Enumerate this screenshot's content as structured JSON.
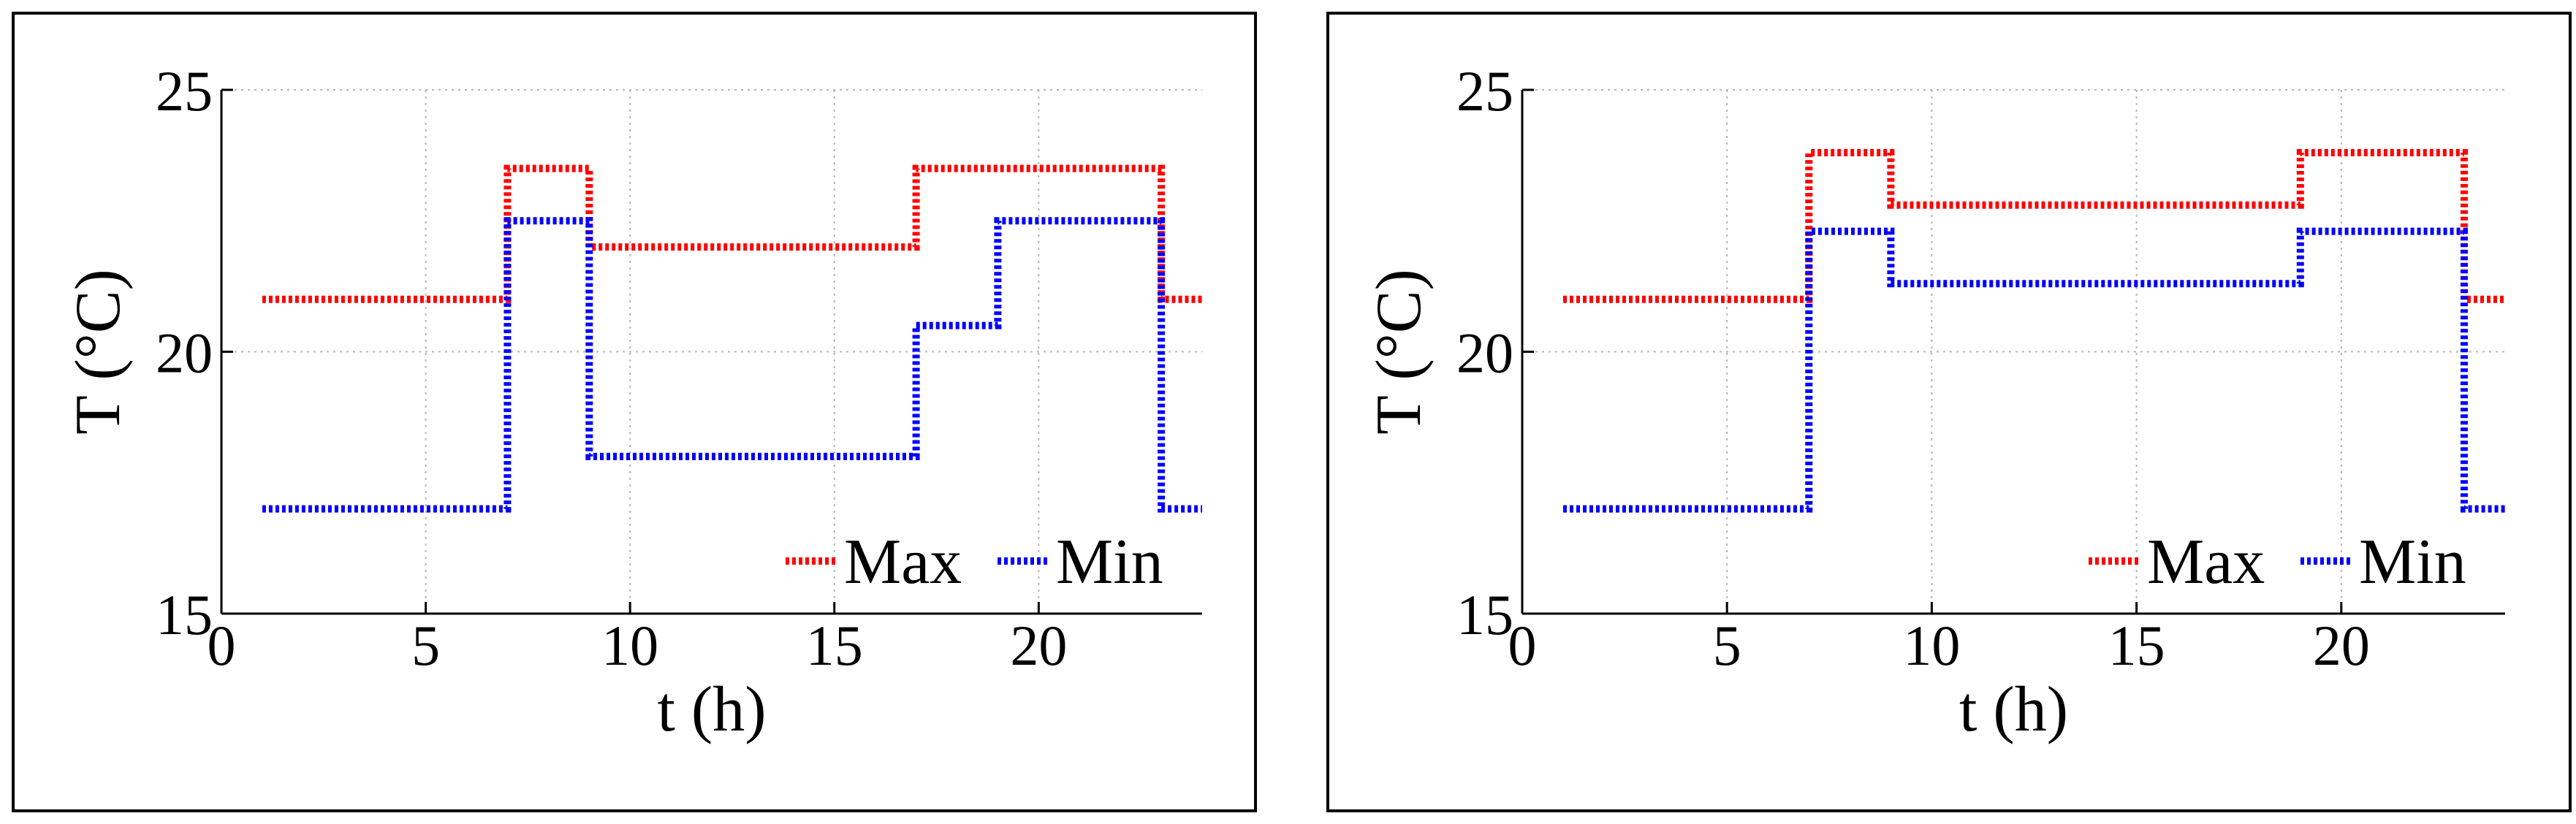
{
  "chart_data": [
    {
      "type": "line",
      "xlabel": "t (h)",
      "ylabel": "T (°C)",
      "xlim": [
        0,
        24
      ],
      "ylim": [
        15,
        25
      ],
      "xticks": [
        0,
        5,
        10,
        15,
        20
      ],
      "yticks": [
        15,
        20,
        25
      ],
      "grid": true,
      "legend_position": "bottom-right",
      "series": [
        {
          "name": "Max",
          "color": "#ff0000",
          "line_style": "dotted-step",
          "x": [
            1,
            7,
            7,
            9,
            9,
            17,
            17,
            23,
            23,
            24
          ],
          "y": [
            21,
            21,
            23.5,
            23.5,
            22,
            22,
            23.5,
            23.5,
            21,
            21
          ]
        },
        {
          "name": "Min",
          "color": "#0000ff",
          "line_style": "dotted-step",
          "x": [
            1,
            7,
            7,
            9,
            9,
            17,
            17,
            19,
            19,
            23,
            23,
            24
          ],
          "y": [
            17,
            17,
            22.5,
            22.5,
            18,
            18,
            20.5,
            20.5,
            22.5,
            22.5,
            17,
            17
          ]
        }
      ]
    },
    {
      "type": "line",
      "xlabel": "t (h)",
      "ylabel": "T (°C)",
      "xlim": [
        0,
        24
      ],
      "ylim": [
        15,
        25
      ],
      "xticks": [
        0,
        5,
        10,
        15,
        20
      ],
      "yticks": [
        15,
        20,
        25
      ],
      "grid": true,
      "legend_position": "bottom-right",
      "series": [
        {
          "name": "Max",
          "color": "#ff0000",
          "line_style": "dotted-step",
          "x": [
            1,
            7,
            7,
            9,
            9,
            19,
            19,
            23,
            23,
            24
          ],
          "y": [
            21,
            21,
            23.8,
            23.8,
            22.8,
            22.8,
            23.8,
            23.8,
            21,
            21
          ]
        },
        {
          "name": "Min",
          "color": "#0000ff",
          "line_style": "dotted-step",
          "x": [
            1,
            7,
            7,
            9,
            9,
            19,
            19,
            23,
            23,
            24
          ],
          "y": [
            17,
            17,
            22.3,
            22.3,
            21.3,
            21.3,
            22.3,
            22.3,
            17,
            17
          ]
        }
      ]
    }
  ]
}
